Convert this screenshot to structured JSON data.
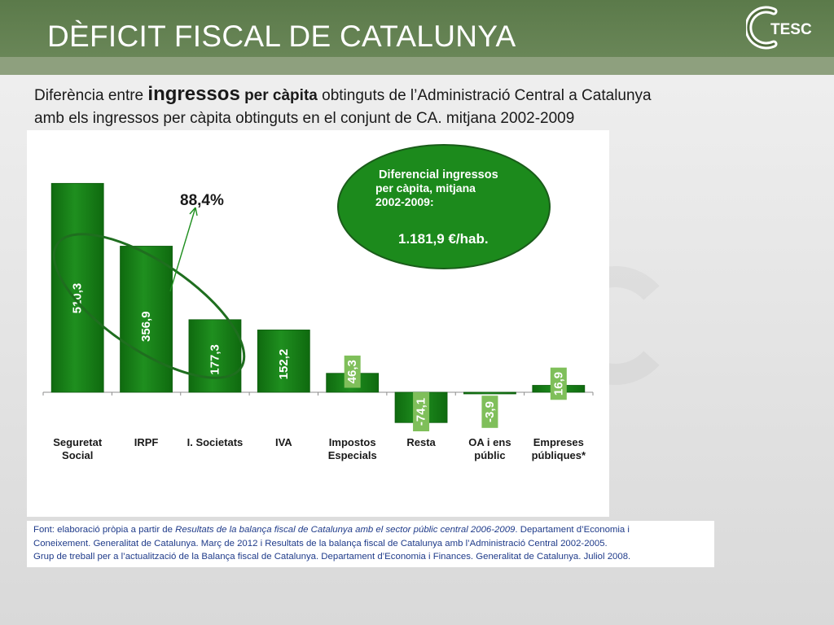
{
  "title": "DÈFICIT FISCAL DE CATALUNYA",
  "logo": {
    "text": "TESC",
    "brand_color": "#4f6b3c"
  },
  "subtitle": {
    "part1": "Diferència entre ",
    "part2": "ingressos",
    "part3": " per càpita",
    "part4": " obtinguts de l’Administració Central a Catalunya",
    "line2": "amb els ingressos per càpita obtinguts en el conjunt de CA. mitjana 2002-2009"
  },
  "chart_data": {
    "type": "bar",
    "title": "",
    "xlabel": "",
    "ylabel": "",
    "grid": false,
    "legend": false,
    "categories": [
      [
        "Seguretat",
        "Social"
      ],
      [
        "IRPF"
      ],
      [
        "I. Societats"
      ],
      [
        "IVA"
      ],
      [
        "Impostos",
        "Especials"
      ],
      [
        "Resta"
      ],
      [
        "OA i ens",
        "públic"
      ],
      [
        "Empreses",
        "públiques*"
      ]
    ],
    "values": [
      510.3,
      356.9,
      177.3,
      152.2,
      46.3,
      -74.1,
      -3.9,
      16.9
    ],
    "value_labels": [
      "510,3",
      "356,9",
      "177,3",
      "152,2",
      "46,3",
      "-74,1",
      "-3,9",
      "16,9"
    ],
    "ylim": [
      -90,
      530
    ],
    "annotation_percent": "88,4%",
    "callout": {
      "line1": "Diferencial ingressos",
      "line2": "per càpita, mitjana",
      "line3": "2002-2009:",
      "value": "1.181,9 €/hab."
    },
    "colors": {
      "bar": "#1f8f1f",
      "bar_dark": "#0f6a0f",
      "small_label_bg": "#7fbf5a",
      "ellipse_stroke": "#1f6e1f",
      "callout_fill": "#1c8a1c"
    }
  },
  "source": {
    "prefix": "Font: elaboració pròpia a partir de ",
    "italic": "Resultats de la balança fiscal de Catalunya amb el sector públic central 2006-2009",
    "rest1": ". Departament d’Economia i",
    "line2": "Coneixement. Generalitat de Catalunya. Març de 2012 i Resultats de la balança fiscal de Catalunya amb l’Administració Central 2002-2005.",
    "line3": "Grup de treball per a l’actualització de la Balança fiscal de Catalunya. Departament d’Economia i Finances. Generalitat de Catalunya. Juliol 2008."
  }
}
